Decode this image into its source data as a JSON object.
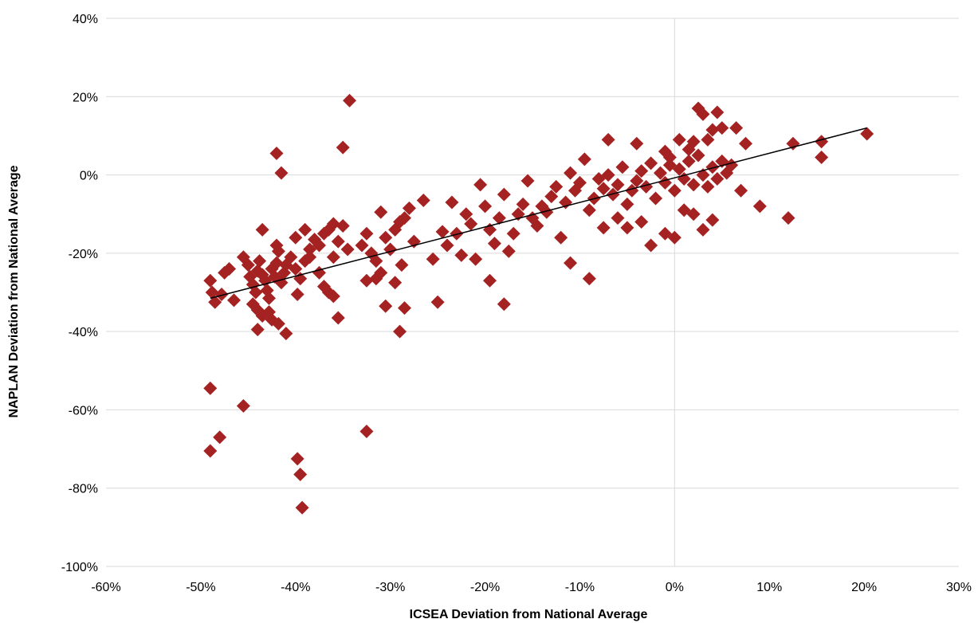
{
  "chart_data": {
    "type": "scatter",
    "title": "",
    "xlabel": "ICSEA Deviation from National Average",
    "ylabel": "NAPLAN Deviation from National Average",
    "xlim": [
      -60,
      30
    ],
    "ylim": [
      -100,
      40
    ],
    "x_ticks": [
      -60,
      -50,
      -40,
      -30,
      -20,
      -10,
      0,
      10,
      20,
      30
    ],
    "y_ticks": [
      -100,
      -80,
      -60,
      -40,
      -20,
      0,
      20,
      40
    ],
    "x_tick_labels": [
      "-60%",
      "-50%",
      "-40%",
      "-30%",
      "-20%",
      "-10%",
      "0%",
      "10%",
      "20%",
      "30%"
    ],
    "y_tick_labels": [
      "-100%",
      "-80%",
      "-60%",
      "-40%",
      "-20%",
      "0%",
      "20%",
      "40%"
    ],
    "grid": {
      "horizontal": true,
      "vertical": false,
      "zero_x_line": true
    },
    "legend": "none",
    "colors": {
      "points": "#A52222",
      "trendline": "#000000",
      "grid": "#D9D9D9"
    },
    "marker": "diamond",
    "trendline": {
      "type": "linear",
      "x": [
        -49,
        20.3
      ],
      "y": [
        -31.5,
        12
      ]
    },
    "series": [
      {
        "points": [
          [
            -49,
            -27
          ],
          [
            -48.8,
            -30
          ],
          [
            -48.5,
            -32.5
          ],
          [
            -47.5,
            -25
          ],
          [
            -47.8,
            -30.5
          ],
          [
            -47,
            -24
          ],
          [
            -46.5,
            -32
          ],
          [
            -45.5,
            -21
          ],
          [
            -45,
            -23
          ],
          [
            -44.8,
            -26
          ],
          [
            -44.5,
            -28
          ],
          [
            -44.2,
            -30
          ],
          [
            -44,
            -24.5
          ],
          [
            -43.8,
            -22
          ],
          [
            -43.5,
            -25.5
          ],
          [
            -43.2,
            -27
          ],
          [
            -43,
            -29.5
          ],
          [
            -42.8,
            -31.5
          ],
          [
            -42.5,
            -24
          ],
          [
            -42.2,
            -26
          ],
          [
            -42,
            -22.5
          ],
          [
            -41.8,
            -19.5
          ],
          [
            -41.5,
            -27.5
          ],
          [
            -41.2,
            -25
          ],
          [
            -41,
            -23
          ],
          [
            -40.5,
            -21
          ],
          [
            -40,
            -24
          ],
          [
            -39.5,
            -26.5
          ],
          [
            -39,
            -22
          ],
          [
            -38.5,
            -19
          ],
          [
            -38,
            -16.5
          ],
          [
            -37.5,
            -18
          ],
          [
            -37,
            -15
          ],
          [
            -36.5,
            -14
          ],
          [
            -36,
            -12.5
          ],
          [
            -35.5,
            -17
          ],
          [
            -35,
            -13
          ],
          [
            -34.5,
            -19
          ],
          [
            -44.5,
            -33
          ],
          [
            -44,
            -34.5
          ],
          [
            -43.5,
            -36
          ],
          [
            -42.8,
            -35
          ],
          [
            -42.5,
            -37
          ],
          [
            -41.8,
            -38
          ],
          [
            -44,
            -39.5
          ],
          [
            -41,
            -40.5
          ],
          [
            -43.5,
            -14
          ],
          [
            -42,
            -18
          ],
          [
            -40,
            -16
          ],
          [
            -39,
            -14
          ],
          [
            -38.5,
            -21
          ],
          [
            -37.5,
            -25
          ],
          [
            -37,
            -28.5
          ],
          [
            -36.5,
            -30
          ],
          [
            -36,
            -31
          ],
          [
            -39.8,
            -30.5
          ],
          [
            -35.5,
            -36.5
          ],
          [
            -36,
            -21
          ],
          [
            -42,
            5.5
          ],
          [
            -41.5,
            0.5
          ],
          [
            -35,
            7
          ],
          [
            -34.3,
            19
          ],
          [
            -33,
            -18
          ],
          [
            -32.5,
            -15
          ],
          [
            -32,
            -20
          ],
          [
            -31.5,
            -22
          ],
          [
            -31,
            -25
          ],
          [
            -32.5,
            -27
          ],
          [
            -31.5,
            -26.5
          ],
          [
            -31,
            -9.5
          ],
          [
            -30.5,
            -16
          ],
          [
            -30,
            -19
          ],
          [
            -29.5,
            -14
          ],
          [
            -29,
            -12
          ],
          [
            -28.5,
            -11
          ],
          [
            -28,
            -8.5
          ],
          [
            -28.8,
            -23
          ],
          [
            -28.5,
            -34
          ],
          [
            -29.5,
            -27.5
          ],
          [
            -30.5,
            -33.5
          ],
          [
            -29,
            -40
          ],
          [
            -27.5,
            -17
          ],
          [
            -26.5,
            -6.5
          ],
          [
            -25.5,
            -21.5
          ],
          [
            -25,
            -32.5
          ],
          [
            -24.5,
            -14.5
          ],
          [
            -24,
            -18
          ],
          [
            -23.5,
            -7
          ],
          [
            -23,
            -15
          ],
          [
            -22.5,
            -20.5
          ],
          [
            -22,
            -10
          ],
          [
            -21.5,
            -12.5
          ],
          [
            -21,
            -21.5
          ],
          [
            -20.5,
            -2.5
          ],
          [
            -20,
            -8
          ],
          [
            -19.5,
            -14
          ],
          [
            -19,
            -17.5
          ],
          [
            -18.5,
            -11
          ],
          [
            -18,
            -5
          ],
          [
            -17.5,
            -19.5
          ],
          [
            -18,
            -33
          ],
          [
            -19.5,
            -27
          ],
          [
            -17,
            -15
          ],
          [
            -16.5,
            -10
          ],
          [
            -16,
            -7.5
          ],
          [
            -15.5,
            -1.5
          ],
          [
            -15,
            -11
          ],
          [
            -14.5,
            -13
          ],
          [
            -14,
            -8
          ],
          [
            -13.5,
            -9.5
          ],
          [
            -13,
            -5.5
          ],
          [
            -12.5,
            -3
          ],
          [
            -12,
            -16
          ],
          [
            -11.5,
            -7
          ],
          [
            -11,
            0.5
          ],
          [
            -10.5,
            -4
          ],
          [
            -10,
            -2
          ],
          [
            -9.5,
            4
          ],
          [
            -9,
            -9
          ],
          [
            -8.5,
            -6
          ],
          [
            -8,
            -1
          ],
          [
            -7.5,
            -3.5
          ],
          [
            -7,
            0
          ],
          [
            -6.5,
            -5
          ],
          [
            -6,
            -2.5
          ],
          [
            -5.5,
            2
          ],
          [
            -5,
            -7.5
          ],
          [
            -4.5,
            -4
          ],
          [
            -4,
            -1.5
          ],
          [
            -3.5,
            1
          ],
          [
            -3,
            -3
          ],
          [
            -2.5,
            3
          ],
          [
            -2,
            -6
          ],
          [
            -1.5,
            0.5
          ],
          [
            -1,
            -2
          ],
          [
            -0.5,
            2.5
          ],
          [
            0,
            -4
          ],
          [
            0.5,
            1.5
          ],
          [
            1,
            -1
          ],
          [
            1.5,
            3.5
          ],
          [
            2,
            -2.5
          ],
          [
            2.5,
            5
          ],
          [
            3,
            0
          ],
          [
            3.5,
            -3
          ],
          [
            4,
            2
          ],
          [
            4.5,
            -1
          ],
          [
            5,
            3.5
          ],
          [
            5.5,
            0.5
          ],
          [
            6,
            2.5
          ],
          [
            -11,
            -22.5
          ],
          [
            -9,
            -26.5
          ],
          [
            -7.5,
            -13.5
          ],
          [
            -6,
            -11
          ],
          [
            -5,
            -13.5
          ],
          [
            -3.5,
            -12
          ],
          [
            -2.5,
            -18
          ],
          [
            -1,
            -15
          ],
          [
            0,
            -16
          ],
          [
            1,
            -9
          ],
          [
            2,
            -10
          ],
          [
            3,
            -14
          ],
          [
            4,
            -11.5
          ],
          [
            -7,
            9
          ],
          [
            -4,
            8
          ],
          [
            -1,
            6
          ],
          [
            0.5,
            9
          ],
          [
            2.5,
            17
          ],
          [
            3,
            15.5
          ],
          [
            4.5,
            16
          ],
          [
            4,
            11.5
          ],
          [
            5,
            12
          ],
          [
            6.5,
            12
          ],
          [
            7.5,
            8
          ],
          [
            3.5,
            9
          ],
          [
            1.5,
            6.5
          ],
          [
            -0.5,
            4.5
          ],
          [
            2,
            8.5
          ],
          [
            7,
            -4
          ],
          [
            9,
            -8
          ],
          [
            12,
            -11
          ],
          [
            12.5,
            8
          ],
          [
            15.5,
            8.5
          ],
          [
            15.5,
            4.5
          ],
          [
            20.3,
            10.5
          ],
          [
            -49,
            -54.5
          ],
          [
            -49,
            -70.5
          ],
          [
            -48,
            -67
          ],
          [
            -45.5,
            -59
          ],
          [
            -32.5,
            -65.5
          ],
          [
            -39.8,
            -72.5
          ],
          [
            -39.5,
            -76.5
          ],
          [
            -39.3,
            -85
          ]
        ]
      }
    ]
  }
}
